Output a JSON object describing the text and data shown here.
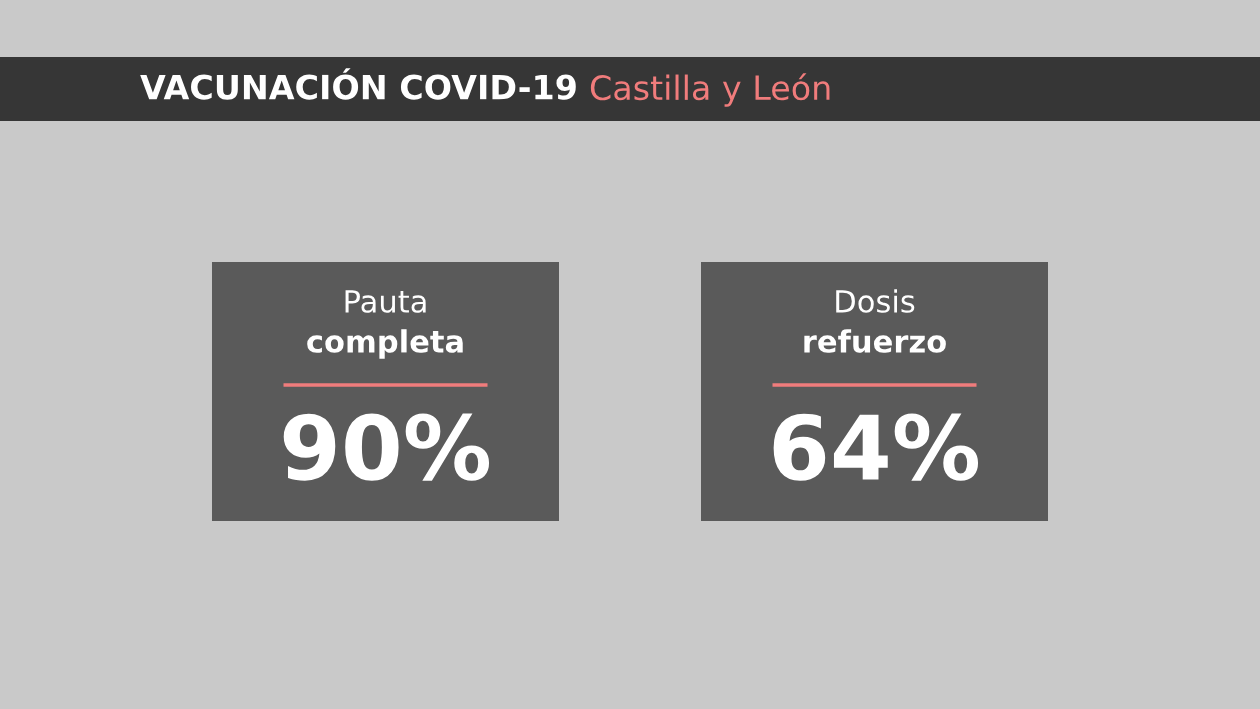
{
  "chart_data": {
    "type": "other",
    "title": "VACUNACIÓN COVID-19",
    "subtitle": "Castilla y León",
    "categories": [
      "Pauta\ncompleta",
      "Dosis\nrefuerzo"
    ],
    "values": [
      90,
      64
    ],
    "value_labels": [
      "90%",
      "64%"
    ],
    "colors": [
      "#5a5a5a",
      "#5a5a5a"
    ]
  }
}
